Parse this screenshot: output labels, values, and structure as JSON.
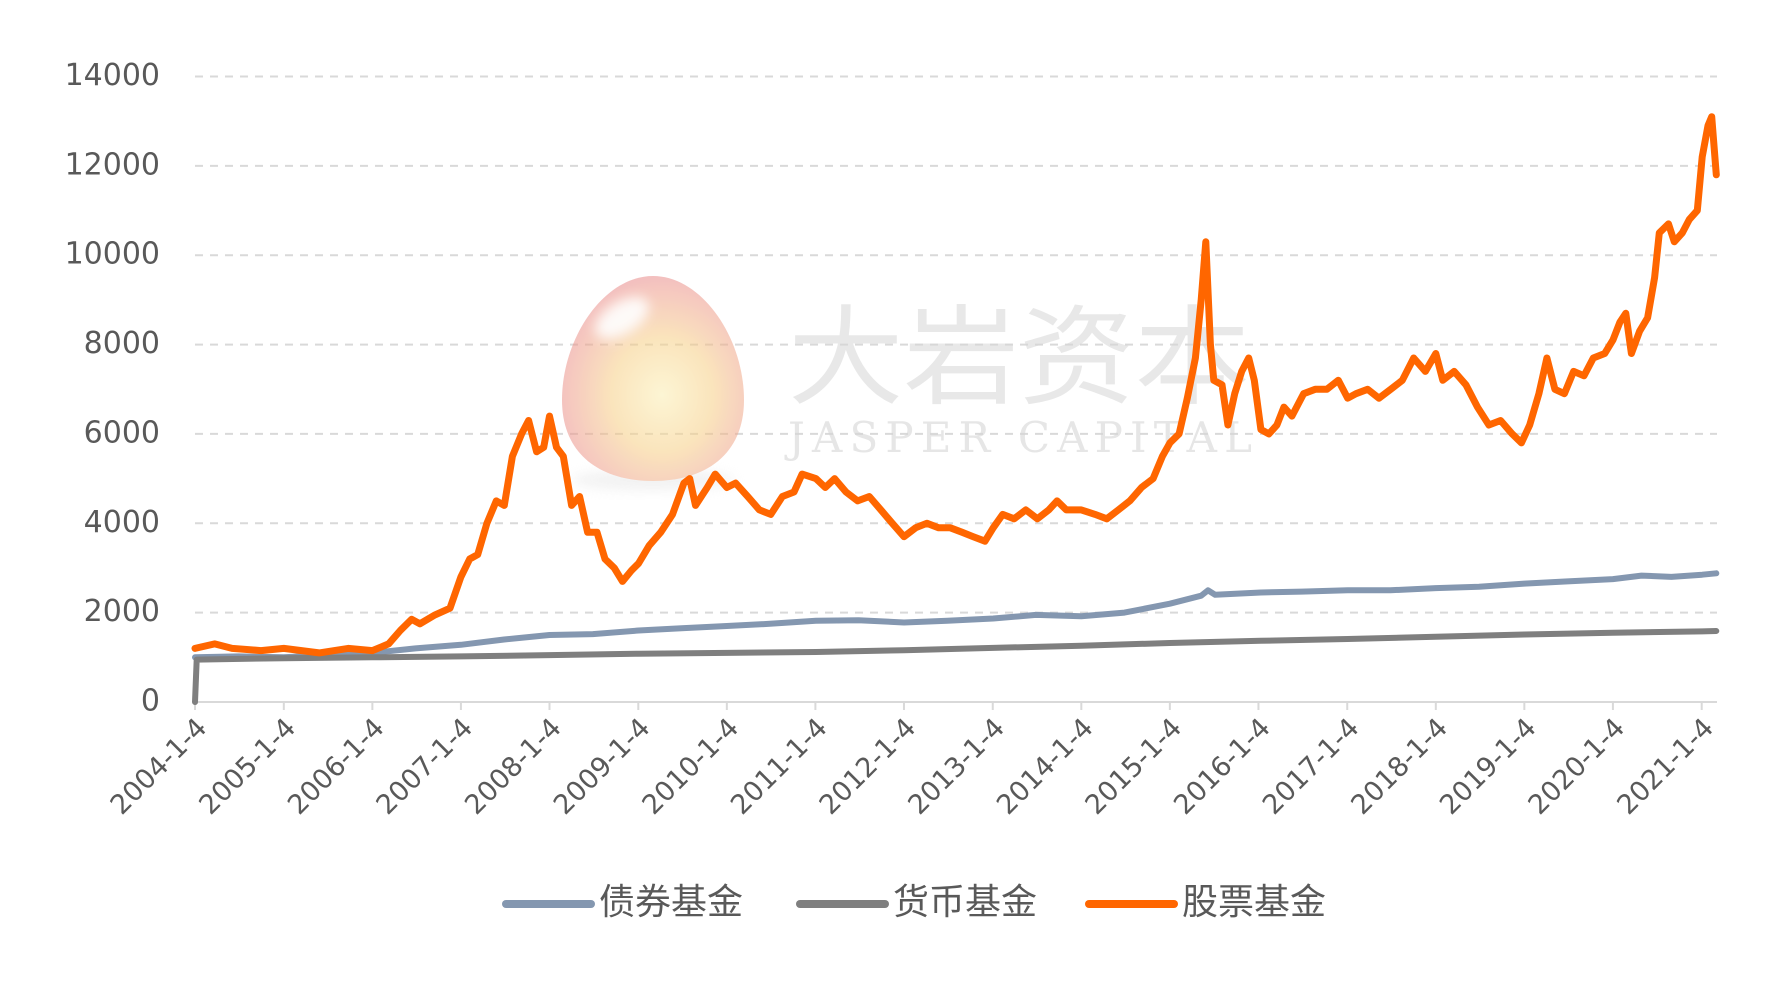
{
  "watermark": {
    "name_cn": "大岩资本",
    "name_en": "JASPER CAPITAL"
  },
  "chart_data": {
    "type": "line",
    "xlim": [
      "2004-01-04",
      "2021-03-08"
    ],
    "ylim": [
      0,
      14000
    ],
    "grid": "horizontal dashed",
    "legend_position": "bottom",
    "y_ticks": [
      "0",
      "2000",
      "4000",
      "6000",
      "8000",
      "10000",
      "12000",
      "14000"
    ],
    "x_ticks": [
      "2004-1-4",
      "2005-1-4",
      "2006-1-4",
      "2007-1-4",
      "2008-1-4",
      "2009-1-4",
      "2010-1-4",
      "2011-1-4",
      "2012-1-4",
      "2013-1-4",
      "2014-1-4",
      "2015-1-4",
      "2016-1-4",
      "2017-1-4",
      "2018-1-4",
      "2019-1-4",
      "2020-1-4",
      "2021-1-4"
    ],
    "series": [
      {
        "name": "债券基金",
        "color": "#8497b0",
        "points": [
          [
            "2004-01-04",
            1000
          ],
          [
            "2004-07-01",
            1020
          ],
          [
            "2005-01-04",
            1000
          ],
          [
            "2005-07-01",
            1050
          ],
          [
            "2006-01-04",
            1100
          ],
          [
            "2006-07-01",
            1200
          ],
          [
            "2007-01-04",
            1280
          ],
          [
            "2007-07-01",
            1400
          ],
          [
            "2008-01-04",
            1500
          ],
          [
            "2008-07-01",
            1520
          ],
          [
            "2009-01-05",
            1600
          ],
          [
            "2009-07-01",
            1650
          ],
          [
            "2010-01-04",
            1700
          ],
          [
            "2010-07-01",
            1750
          ],
          [
            "2011-01-06",
            1820
          ],
          [
            "2011-07-01",
            1830
          ],
          [
            "2012-01-04",
            1780
          ],
          [
            "2012-07-01",
            1820
          ],
          [
            "2013-01-06",
            1870
          ],
          [
            "2013-07-01",
            1950
          ],
          [
            "2014-01-04",
            1920
          ],
          [
            "2014-07-01",
            2000
          ],
          [
            "2015-01-04",
            2200
          ],
          [
            "2015-05-13",
            2380
          ],
          [
            "2015-06-10",
            2500
          ],
          [
            "2015-07-10",
            2400
          ],
          [
            "2016-01-14",
            2450
          ],
          [
            "2016-07-01",
            2470
          ],
          [
            "2017-01-06",
            2500
          ],
          [
            "2017-07-01",
            2500
          ],
          [
            "2018-01-04",
            2550
          ],
          [
            "2018-07-01",
            2580
          ],
          [
            "2019-01-04",
            2650
          ],
          [
            "2019-07-01",
            2700
          ],
          [
            "2020-01-04",
            2750
          ],
          [
            "2020-05-01",
            2830
          ],
          [
            "2020-09-01",
            2800
          ],
          [
            "2021-01-06",
            2850
          ],
          [
            "2021-03-05",
            2880
          ]
        ]
      },
      {
        "name": "货币基金",
        "color": "#7f7f7f",
        "points": [
          [
            "2004-01-04",
            0
          ],
          [
            "2004-01-11",
            950
          ],
          [
            "2005-01-04",
            980
          ],
          [
            "2006-01-04",
            1000
          ],
          [
            "2007-01-04",
            1020
          ],
          [
            "2008-01-04",
            1050
          ],
          [
            "2009-01-05",
            1080
          ],
          [
            "2010-01-04",
            1100
          ],
          [
            "2011-01-06",
            1120
          ],
          [
            "2012-01-04",
            1160
          ],
          [
            "2013-01-06",
            1210
          ],
          [
            "2014-01-04",
            1260
          ],
          [
            "2015-01-04",
            1320
          ],
          [
            "2016-01-14",
            1370
          ],
          [
            "2017-01-06",
            1410
          ],
          [
            "2018-01-04",
            1460
          ],
          [
            "2019-01-04",
            1510
          ],
          [
            "2020-01-04",
            1550
          ],
          [
            "2021-01-06",
            1580
          ],
          [
            "2021-03-05",
            1590
          ]
        ]
      },
      {
        "name": "股票基金",
        "color": "#ff6600",
        "points": [
          [
            "2004-01-04",
            1200
          ],
          [
            "2004-03-25",
            1300
          ],
          [
            "2004-06-05",
            1200
          ],
          [
            "2004-10-02",
            1150
          ],
          [
            "2005-01-04",
            1200
          ],
          [
            "2005-05-30",
            1100
          ],
          [
            "2005-09-26",
            1200
          ],
          [
            "2006-01-04",
            1150
          ],
          [
            "2006-03-12",
            1300
          ],
          [
            "2006-04-29",
            1600
          ],
          [
            "2006-06-15",
            1850
          ],
          [
            "2006-07-19",
            1750
          ],
          [
            "2006-09-19",
            1950
          ],
          [
            "2006-11-20",
            2100
          ],
          [
            "2007-01-04",
            2800
          ],
          [
            "2007-02-09",
            3200
          ],
          [
            "2007-03-14",
            3300
          ],
          [
            "2007-04-21",
            4000
          ],
          [
            "2007-05-30",
            4500
          ],
          [
            "2007-07-02",
            4400
          ],
          [
            "2007-08-04",
            5500
          ],
          [
            "2007-09-11",
            6000
          ],
          [
            "2007-10-10",
            6300
          ],
          [
            "2007-11-12",
            5600
          ],
          [
            "2007-12-11",
            5700
          ],
          [
            "2008-01-04",
            6400
          ],
          [
            "2008-02-02",
            5700
          ],
          [
            "2008-03-01",
            5500
          ],
          [
            "2008-04-04",
            4400
          ],
          [
            "2008-05-07",
            4600
          ],
          [
            "2008-06-09",
            3800
          ],
          [
            "2008-07-18",
            3800
          ],
          [
            "2008-08-20",
            3200
          ],
          [
            "2008-09-27",
            3000
          ],
          [
            "2008-10-31",
            2700
          ],
          [
            "2008-12-08",
            2950
          ],
          [
            "2009-01-05",
            3100
          ],
          [
            "2009-02-18",
            3500
          ],
          [
            "2009-04-07",
            3800
          ],
          [
            "2009-05-25",
            4200
          ],
          [
            "2009-07-11",
            4900
          ],
          [
            "2009-08-04",
            5000
          ],
          [
            "2009-08-28",
            4400
          ],
          [
            "2009-10-15",
            4800
          ],
          [
            "2009-11-17",
            5100
          ],
          [
            "2010-01-04",
            4800
          ],
          [
            "2010-02-09",
            4900
          ],
          [
            "2010-03-31",
            4600
          ],
          [
            "2010-05-18",
            4300
          ],
          [
            "2010-07-04",
            4200
          ],
          [
            "2010-08-21",
            4600
          ],
          [
            "2010-10-08",
            4700
          ],
          [
            "2010-11-10",
            5100
          ],
          [
            "2011-01-06",
            5000
          ],
          [
            "2011-02-14",
            4800
          ],
          [
            "2011-03-24",
            5000
          ],
          [
            "2011-05-10",
            4700
          ],
          [
            "2011-06-27",
            4500
          ],
          [
            "2011-08-14",
            4600
          ],
          [
            "2011-10-01",
            4300
          ],
          [
            "2011-11-17",
            4000
          ],
          [
            "2012-01-04",
            3700
          ],
          [
            "2012-02-21",
            3900
          ],
          [
            "2012-04-08",
            4000
          ],
          [
            "2012-05-26",
            3900
          ],
          [
            "2012-07-13",
            3900
          ],
          [
            "2012-08-30",
            3800
          ],
          [
            "2012-10-16",
            3700
          ],
          [
            "2012-12-03",
            3600
          ],
          [
            "2013-01-06",
            3900
          ],
          [
            "2013-02-14",
            4200
          ],
          [
            "2013-04-02",
            4100
          ],
          [
            "2013-05-20",
            4300
          ],
          [
            "2013-07-07",
            4100
          ],
          [
            "2013-08-23",
            4300
          ],
          [
            "2013-09-26",
            4500
          ],
          [
            "2013-11-03",
            4300
          ],
          [
            "2014-01-04",
            4300
          ],
          [
            "2014-03-02",
            4200
          ],
          [
            "2014-04-19",
            4100
          ],
          [
            "2014-06-06",
            4300
          ],
          [
            "2014-07-23",
            4500
          ],
          [
            "2014-09-09",
            4800
          ],
          [
            "2014-10-27",
            5000
          ],
          [
            "2014-12-04",
            5500
          ],
          [
            "2015-01-04",
            5800
          ],
          [
            "2015-02-11",
            6000
          ],
          [
            "2015-03-17",
            6800
          ],
          [
            "2015-04-19",
            7700
          ],
          [
            "2015-05-13",
            9000
          ],
          [
            "2015-06-01",
            10300
          ],
          [
            "2015-06-20",
            8000
          ],
          [
            "2015-07-04",
            7200
          ],
          [
            "2015-08-07",
            7100
          ],
          [
            "2015-08-31",
            6200
          ],
          [
            "2015-09-28",
            6900
          ],
          [
            "2015-10-27",
            7400
          ],
          [
            "2015-11-25",
            7700
          ],
          [
            "2015-12-18",
            7200
          ],
          [
            "2016-01-14",
            6100
          ],
          [
            "2016-02-16",
            6000
          ],
          [
            "2016-03-20",
            6200
          ],
          [
            "2016-04-18",
            6600
          ],
          [
            "2016-05-21",
            6400
          ],
          [
            "2016-07-08",
            6900
          ],
          [
            "2016-08-25",
            7000
          ],
          [
            "2016-10-12",
            7000
          ],
          [
            "2016-11-28",
            7200
          ],
          [
            "2017-01-06",
            6800
          ],
          [
            "2017-02-09",
            6900
          ],
          [
            "2017-03-29",
            7000
          ],
          [
            "2017-05-15",
            6800
          ],
          [
            "2017-07-02",
            7000
          ],
          [
            "2017-08-19",
            7200
          ],
          [
            "2017-10-05",
            7700
          ],
          [
            "2017-11-22",
            7400
          ],
          [
            "2018-01-04",
            7800
          ],
          [
            "2018-02-02",
            7200
          ],
          [
            "2018-03-21",
            7400
          ],
          [
            "2018-05-08",
            7100
          ],
          [
            "2018-06-25",
            6600
          ],
          [
            "2018-08-11",
            6200
          ],
          [
            "2018-09-28",
            6300
          ],
          [
            "2018-11-15",
            6000
          ],
          [
            "2018-12-23",
            5800
          ],
          [
            "2019-01-26",
            6200
          ],
          [
            "2019-03-05",
            6900
          ],
          [
            "2019-04-07",
            7700
          ],
          [
            "2019-05-10",
            7000
          ],
          [
            "2019-06-18",
            6900
          ],
          [
            "2019-07-26",
            7400
          ],
          [
            "2019-09-07",
            7300
          ],
          [
            "2019-10-15",
            7700
          ],
          [
            "2019-12-01",
            7800
          ],
          [
            "2020-01-04",
            8100
          ],
          [
            "2020-02-02",
            8500
          ],
          [
            "2020-02-26",
            8700
          ],
          [
            "2020-03-20",
            7800
          ],
          [
            "2020-04-23",
            8300
          ],
          [
            "2020-05-26",
            8600
          ],
          [
            "2020-06-24",
            9500
          ],
          [
            "2020-07-13",
            10500
          ],
          [
            "2020-08-20",
            10700
          ],
          [
            "2020-09-13",
            10300
          ],
          [
            "2020-10-16",
            10500
          ],
          [
            "2020-11-14",
            10800
          ],
          [
            "2020-12-17",
            11000
          ],
          [
            "2021-01-06",
            12200
          ],
          [
            "2021-01-30",
            12900
          ],
          [
            "2021-02-14",
            13100
          ],
          [
            "2021-03-05",
            11800
          ]
        ]
      }
    ]
  }
}
